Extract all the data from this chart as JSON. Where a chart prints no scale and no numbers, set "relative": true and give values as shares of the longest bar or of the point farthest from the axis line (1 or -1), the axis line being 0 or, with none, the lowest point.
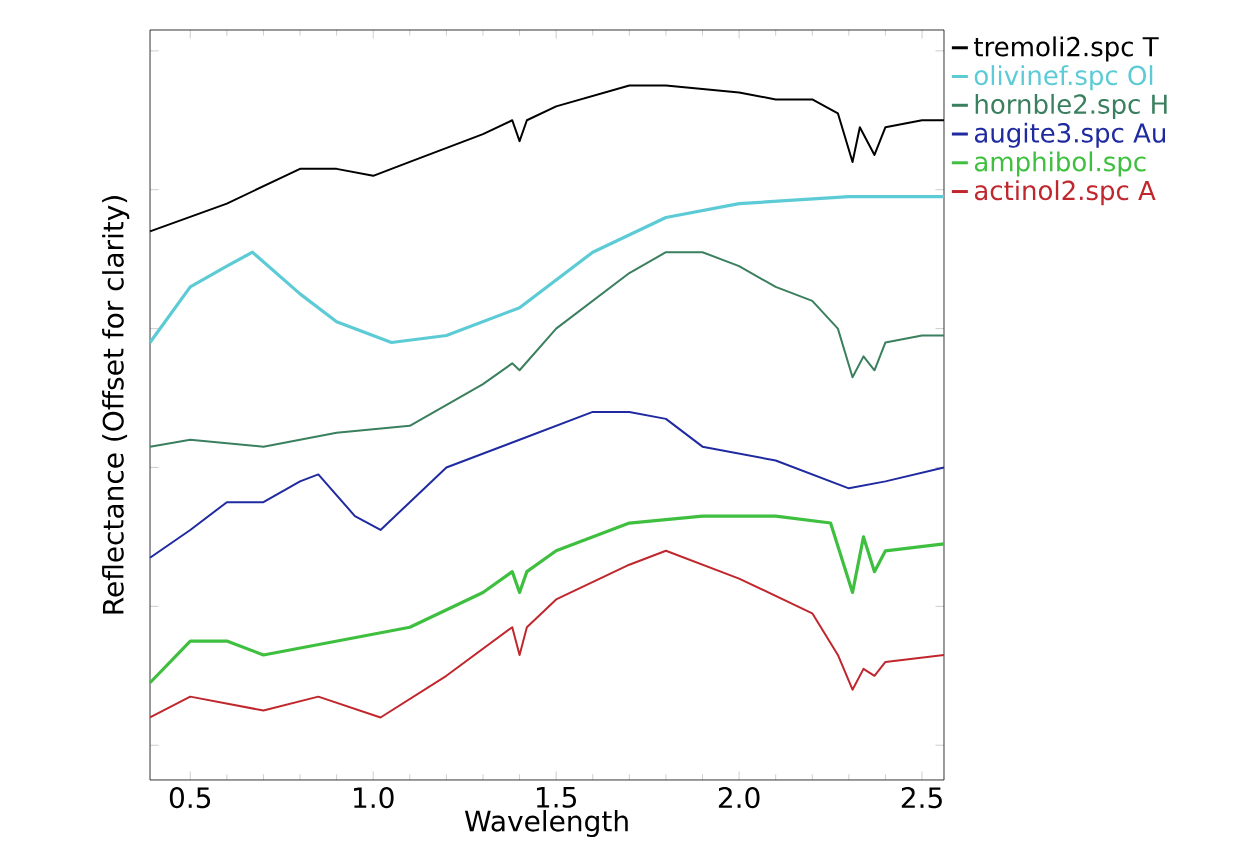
{
  "chart_data": {
    "type": "line",
    "relative": true,
    "xlabel": "Wavelength",
    "ylabel": "Reflectance (Offset for clarity)",
    "xlim": [
      0.39,
      2.56
    ],
    "xticks": [
      0.5,
      {
        "value": 1.0,
        "label": "1.0"
      },
      1.5,
      {
        "value": 2.0,
        "label": "2.0"
      },
      2.5
    ],
    "legend": "top right",
    "grid": false,
    "marker": "none",
    "line_style": "solid",
    "series": [
      {
        "name": "tremoli2.spc T",
        "color": "#000000",
        "x": [
          0.39,
          0.6,
          0.8,
          0.9,
          1.0,
          1.05,
          1.1,
          1.3,
          1.38,
          1.4,
          1.42,
          1.5,
          1.7,
          1.8,
          2.0,
          2.1,
          2.2,
          2.27,
          2.31,
          2.33,
          2.37,
          2.4,
          2.5,
          2.56
        ],
        "values": [
          0.79,
          0.83,
          0.88,
          0.88,
          0.87,
          0.88,
          0.89,
          0.93,
          0.95,
          0.92,
          0.95,
          0.97,
          1.0,
          1.0,
          0.99,
          0.98,
          0.98,
          0.96,
          0.89,
          0.94,
          0.9,
          0.94,
          0.95,
          0.95
        ]
      },
      {
        "name": "olivinef.spc Ol",
        "color": "#5ccbd6",
        "x": [
          0.39,
          0.5,
          0.6,
          0.67,
          0.8,
          0.9,
          1.05,
          1.2,
          1.4,
          1.6,
          1.8,
          2.0,
          2.3,
          2.56
        ],
        "values": [
          0.63,
          0.71,
          0.74,
          0.76,
          0.7,
          0.66,
          0.63,
          0.64,
          0.68,
          0.76,
          0.81,
          0.83,
          0.84,
          0.84
        ]
      },
      {
        "name": "hornble2.spc H",
        "color": "#3a7f5e",
        "x": [
          0.39,
          0.5,
          0.7,
          0.9,
          1.1,
          1.3,
          1.38,
          1.4,
          1.5,
          1.7,
          1.8,
          1.9,
          2.0,
          2.1,
          2.2,
          2.27,
          2.31,
          2.34,
          2.37,
          2.4,
          2.5,
          2.56
        ],
        "values": [
          0.48,
          0.49,
          0.48,
          0.5,
          0.51,
          0.57,
          0.6,
          0.59,
          0.65,
          0.73,
          0.76,
          0.76,
          0.74,
          0.71,
          0.69,
          0.65,
          0.58,
          0.61,
          0.59,
          0.63,
          0.64,
          0.64
        ]
      },
      {
        "name": "augite3.spc Au",
        "color": "#1f2aa0",
        "x": [
          0.39,
          0.5,
          0.6,
          0.7,
          0.8,
          0.85,
          0.95,
          1.02,
          1.1,
          1.2,
          1.4,
          1.6,
          1.7,
          1.8,
          1.9,
          2.1,
          2.3,
          2.4,
          2.56
        ],
        "values": [
          0.32,
          0.36,
          0.4,
          0.4,
          0.43,
          0.44,
          0.38,
          0.36,
          0.4,
          0.45,
          0.49,
          0.53,
          0.53,
          0.52,
          0.48,
          0.46,
          0.42,
          0.43,
          0.45
        ]
      },
      {
        "name": "amphibol.spc",
        "color": "#3fbf3f",
        "x": [
          0.39,
          0.5,
          0.6,
          0.7,
          0.9,
          1.1,
          1.3,
          1.38,
          1.4,
          1.42,
          1.5,
          1.7,
          1.9,
          2.1,
          2.25,
          2.31,
          2.34,
          2.37,
          2.4,
          2.56
        ],
        "values": [
          0.14,
          0.2,
          0.2,
          0.18,
          0.2,
          0.22,
          0.27,
          0.3,
          0.27,
          0.3,
          0.33,
          0.37,
          0.38,
          0.38,
          0.37,
          0.27,
          0.35,
          0.3,
          0.33,
          0.34
        ]
      },
      {
        "name": "actinol2.spc A",
        "color": "#c0272d",
        "x": [
          0.39,
          0.5,
          0.7,
          0.85,
          1.02,
          1.2,
          1.38,
          1.4,
          1.42,
          1.5,
          1.7,
          1.8,
          2.0,
          2.2,
          2.27,
          2.31,
          2.34,
          2.37,
          2.4,
          2.56
        ],
        "values": [
          0.09,
          0.12,
          0.1,
          0.12,
          0.09,
          0.15,
          0.22,
          0.18,
          0.22,
          0.26,
          0.31,
          0.33,
          0.29,
          0.24,
          0.18,
          0.13,
          0.16,
          0.15,
          0.17,
          0.18
        ]
      }
    ]
  }
}
